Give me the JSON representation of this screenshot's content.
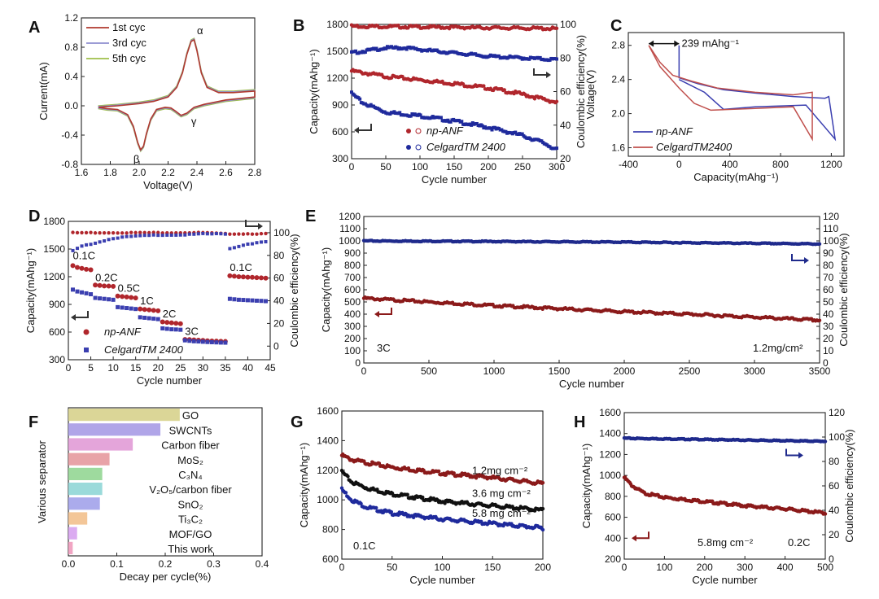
{
  "chart_data": [
    {
      "panel": "A",
      "type": "line",
      "xlabel": "Voltage(V)",
      "ylabel": "Current(mA)",
      "xlim": [
        1.6,
        2.8
      ],
      "ylim": [
        -0.8,
        1.2
      ],
      "xticks": [
        "1.6",
        "1.8",
        "2.0",
        "2.2",
        "2.4",
        "2.6",
        "2.8"
      ],
      "yticks": [
        "-0.8",
        "-0.4",
        "0.0",
        "0.4",
        "0.8",
        "1.2"
      ],
      "legend": [
        {
          "label": "1st cyc",
          "color": "#b03a2e"
        },
        {
          "label": "3rd cyc",
          "color": "#8e8ecf"
        },
        {
          "label": "5th cyc",
          "color": "#9fbf4a"
        }
      ],
      "annotations": [
        "α",
        "β",
        "γ"
      ],
      "cathodic_x": [
        2.8,
        2.6,
        2.45,
        2.38,
        2.33,
        2.29,
        2.25,
        2.22,
        2.18,
        2.12,
        2.08,
        2.05,
        2.03,
        2.01,
        1.99,
        1.96,
        1.92,
        1.85,
        1.78,
        1.72
      ],
      "cathodic_y": [
        0.12,
        0.08,
        0.02,
        -0.02,
        -0.1,
        -0.13,
        -0.07,
        -0.03,
        -0.02,
        -0.05,
        -0.18,
        -0.38,
        -0.55,
        -0.6,
        -0.5,
        -0.28,
        -0.12,
        -0.05,
        -0.04,
        -0.02
      ],
      "anodic_x": [
        1.72,
        1.85,
        2.0,
        2.1,
        2.2,
        2.26,
        2.3,
        2.33,
        2.36,
        2.38,
        2.4,
        2.43,
        2.47,
        2.55,
        2.65,
        2.8
      ],
      "anodic_y": [
        -0.02,
        0.0,
        0.03,
        0.06,
        0.12,
        0.25,
        0.45,
        0.7,
        0.88,
        0.9,
        0.75,
        0.45,
        0.25,
        0.18,
        0.18,
        0.2
      ]
    },
    {
      "panel": "B",
      "type": "scatter",
      "xlabel": "Cycle number",
      "ylabel": "Capacity(mAhg⁻¹)",
      "y2label": "Coulombic efficiency(%)",
      "xlim": [
        0,
        300
      ],
      "ylim": [
        300,
        1800
      ],
      "y2lim": [
        20,
        100
      ],
      "xticks": [
        "0",
        "50",
        "100",
        "150",
        "200",
        "250",
        "300"
      ],
      "yticks": [
        "300",
        "600",
        "900",
        "1200",
        "1500",
        "1800"
      ],
      "y2ticks": [
        "20",
        "40",
        "60",
        "80",
        "100"
      ],
      "legend": [
        {
          "label": "np-ANF",
          "color": "#b0262c"
        },
        {
          "label": "CelgardTM 2400",
          "color": "#1f2a9c"
        }
      ],
      "series": [
        {
          "name": "np-ANF capacity",
          "axis": "y",
          "color": "#b0262c",
          "x": [
            0,
            50,
            100,
            150,
            200,
            250,
            300
          ],
          "y": [
            1280,
            1220,
            1180,
            1140,
            1090,
            1020,
            930
          ]
        },
        {
          "name": "Celgard capacity",
          "axis": "y",
          "color": "#1f2a9c",
          "x": [
            0,
            15,
            50,
            100,
            150,
            200,
            250,
            280,
            300
          ],
          "y": [
            1030,
            930,
            820,
            780,
            720,
            650,
            560,
            480,
            400
          ]
        },
        {
          "name": "np-ANF CE",
          "axis": "y2",
          "color": "#b0262c",
          "x": [
            0,
            100,
            200,
            300
          ],
          "y": [
            99,
            98.5,
            98,
            97.5
          ]
        },
        {
          "name": "Celgard CE",
          "axis": "y2",
          "color": "#1f2a9c",
          "x": [
            0,
            50,
            80,
            100,
            150,
            200,
            250,
            300
          ],
          "y": [
            83,
            86,
            86,
            85,
            83,
            81,
            80,
            79
          ]
        }
      ]
    },
    {
      "panel": "C",
      "type": "line",
      "xlabel": "Capacity(mAhg⁻¹)",
      "ylabel": "Voltage(V)",
      "xlim": [
        -400,
        1300
      ],
      "ylim": [
        1.5,
        2.95
      ],
      "xticks": [
        "-400",
        "0",
        "400",
        "800",
        "1200"
      ],
      "yticks": [
        "1.6",
        "2.0",
        "2.4",
        "2.8"
      ],
      "annotation": "239 mAhg⁻¹",
      "legend": [
        {
          "label": "np-ANF",
          "color": "#3b3fb0"
        },
        {
          "label": "CelgardTM2400",
          "color": "#c0504d"
        }
      ],
      "series": [
        {
          "name": "np-ANF",
          "color": "#3b3fb0",
          "x": [
            0,
            0,
            150,
            350,
            600,
            900,
            1150,
            1180,
            1230,
            1230,
            1000,
            600,
            350,
            200,
            0
          ],
          "y": [
            2.8,
            2.42,
            2.35,
            2.28,
            2.24,
            2.2,
            2.18,
            2.2,
            1.7,
            1.7,
            2.1,
            2.08,
            2.05,
            2.25,
            2.4
          ]
        },
        {
          "name": "Celgard",
          "color": "#c0504d",
          "x": [
            -239,
            -150,
            -50,
            100,
            300,
            600,
            900,
            1050,
            1050,
            900,
            600,
            250,
            120,
            0,
            -150,
            -239
          ],
          "y": [
            2.8,
            2.6,
            2.45,
            2.38,
            2.3,
            2.25,
            2.22,
            2.25,
            1.7,
            2.08,
            2.06,
            2.04,
            2.12,
            2.3,
            2.55,
            2.8
          ]
        }
      ]
    },
    {
      "panel": "D",
      "type": "scatter",
      "xlabel": "Cycle number",
      "ylabel": "Capacity(mAhg⁻¹)",
      "y2label": "Coulombic efficiency(%)",
      "xlim": [
        0,
        45
      ],
      "ylim": [
        300,
        1800
      ],
      "y2lim": [
        -12,
        110
      ],
      "xticks": [
        "0",
        "5",
        "10",
        "15",
        "20",
        "25",
        "30",
        "35",
        "40",
        "45"
      ],
      "yticks": [
        "300",
        "600",
        "900",
        "1200",
        "1500",
        "1800"
      ],
      "y2ticks": [
        "0",
        "20",
        "40",
        "60",
        "80",
        "100"
      ],
      "rate_labels": [
        "0.1C",
        "0.2C",
        "0.5C",
        "1C",
        "2C",
        "3C",
        "0.1C"
      ],
      "legend": [
        {
          "label": "np-ANF",
          "color": "#b0262c"
        },
        {
          "label": "CelgardTM 2400",
          "color": "#3b3fb0"
        }
      ],
      "series": [
        {
          "name": "np-ANF capacity",
          "axis": "y",
          "color": "#b0262c",
          "x": [
            1,
            2,
            3,
            4,
            5,
            6,
            7,
            8,
            9,
            10,
            11,
            12,
            13,
            14,
            15,
            16,
            17,
            18,
            19,
            20,
            21,
            22,
            23,
            24,
            25,
            26,
            27,
            28,
            29,
            30,
            31,
            32,
            33,
            34,
            35,
            36,
            37,
            38,
            39,
            40,
            41,
            42,
            43,
            44
          ],
          "y": [
            1320,
            1300,
            1290,
            1280,
            1275,
            1110,
            1105,
            1100,
            1098,
            1095,
            990,
            985,
            980,
            975,
            970,
            850,
            845,
            840,
            835,
            830,
            710,
            705,
            700,
            695,
            690,
            520,
            518,
            515,
            512,
            510,
            505,
            503,
            502,
            500,
            498,
            1210,
            1205,
            1200,
            1198,
            1195,
            1193,
            1190,
            1188,
            1185
          ]
        },
        {
          "name": "Celgard capacity",
          "axis": "y",
          "color": "#3b3fb0",
          "x": [
            1,
            2,
            3,
            4,
            5,
            6,
            7,
            8,
            9,
            10,
            11,
            12,
            13,
            14,
            15,
            16,
            17,
            18,
            19,
            20,
            21,
            22,
            23,
            24,
            25,
            26,
            27,
            28,
            29,
            30,
            31,
            32,
            33,
            34,
            35,
            36,
            37,
            38,
            39,
            40,
            41,
            42,
            43,
            44
          ],
          "y": [
            1060,
            1040,
            1030,
            1020,
            1010,
            970,
            965,
            960,
            955,
            950,
            870,
            865,
            860,
            855,
            850,
            760,
            755,
            750,
            745,
            740,
            640,
            635,
            630,
            628,
            625,
            510,
            505,
            500,
            498,
            495,
            492,
            490,
            488,
            486,
            485,
            960,
            955,
            950,
            948,
            945,
            943,
            940,
            938,
            935
          ]
        },
        {
          "name": "np-ANF CE",
          "axis": "y2",
          "color": "#b0262c",
          "x": [
            1,
            5,
            10,
            15,
            20,
            25,
            30,
            35,
            40,
            44
          ],
          "y": [
            100,
            100,
            100,
            100,
            100,
            100,
            100,
            99,
            99,
            99
          ]
        },
        {
          "name": "Celgard CE",
          "axis": "y2",
          "color": "#3b3fb0",
          "x": [
            1,
            2,
            3,
            4,
            5,
            6,
            8,
            10,
            12,
            15,
            20,
            25,
            30,
            35,
            36,
            38,
            40,
            44
          ],
          "y": [
            84,
            86,
            88,
            89,
            90,
            91,
            93,
            95,
            96,
            97,
            98,
            98,
            99,
            99,
            86,
            88,
            90,
            92
          ]
        }
      ]
    },
    {
      "panel": "E",
      "type": "scatter",
      "xlabel": "Cycle number",
      "ylabel": "Capacity(mAhg⁻¹)",
      "y2label": "Coulombic efficiency(%)",
      "xlim": [
        0,
        3500
      ],
      "ylim": [
        0,
        1200
      ],
      "y2lim": [
        0,
        120
      ],
      "xticks": [
        "0",
        "500",
        "1000",
        "1500",
        "2000",
        "2500",
        "3000",
        "3500"
      ],
      "yticks": [
        "0",
        "100",
        "200",
        "300",
        "400",
        "500",
        "600",
        "700",
        "800",
        "900",
        "1000",
        "1100",
        "1200"
      ],
      "y2ticks": [
        "0",
        "10",
        "20",
        "30",
        "40",
        "50",
        "60",
        "70",
        "80",
        "90",
        "100",
        "110",
        "120"
      ],
      "annotations": [
        "3C",
        "1.2mg/cm²"
      ],
      "series": [
        {
          "name": "Capacity",
          "axis": "y",
          "color": "#8b1a1a",
          "x": [
            0,
            500,
            1000,
            1500,
            2000,
            2500,
            3000,
            3500
          ],
          "y": [
            530,
            500,
            470,
            445,
            420,
            400,
            375,
            350
          ]
        },
        {
          "name": "Coulombic efficiency",
          "axis": "y2",
          "color": "#1f2a8c",
          "x": [
            0,
            1000,
            2000,
            3000,
            3500
          ],
          "y": [
            100,
            99.5,
            99,
            98,
            97.5
          ]
        }
      ]
    },
    {
      "panel": "F",
      "type": "bar",
      "orientation": "horizontal",
      "xlabel": "Decay per cycle(%)",
      "ylabel": "Various separator",
      "xlim": [
        0,
        0.4
      ],
      "xticks": [
        "0.0",
        "0.1",
        "0.2",
        "0.3",
        "0.4"
      ],
      "categories": [
        "GO",
        "SWCNTs",
        "Carbon fiber",
        "MoS₂",
        "C₃N₄",
        "V₂O₅/carbon fiber",
        "SnO₂",
        "Ti₃C₂",
        "MOF/GO",
        "This work"
      ],
      "values": [
        0.23,
        0.19,
        0.133,
        0.085,
        0.07,
        0.07,
        0.065,
        0.039,
        0.018,
        0.009
      ],
      "colors": [
        "#d7d28c",
        "#a79be6",
        "#e19bd6",
        "#e6999e",
        "#93d693",
        "#8fd6d6",
        "#a2a2ea",
        "#f2c08d",
        "#d7a2ef",
        "#ef9bbd"
      ]
    },
    {
      "panel": "G",
      "type": "scatter",
      "xlabel": "Cycle number",
      "ylabel": "Capacity(mAhg⁻¹)",
      "xlim": [
        0,
        200
      ],
      "ylim": [
        600,
        1600
      ],
      "xticks": [
        "0",
        "50",
        "100",
        "150",
        "200"
      ],
      "yticks": [
        "600",
        "800",
        "1000",
        "1200",
        "1400",
        "1600"
      ],
      "annotations": [
        "0.1C"
      ],
      "series": [
        {
          "name": "1.2mg cm⁻²",
          "color": "#8b1a1a",
          "x": [
            0,
            10,
            25,
            50,
            100,
            150,
            200
          ],
          "y": [
            1300,
            1270,
            1250,
            1220,
            1180,
            1150,
            1110
          ]
        },
        {
          "name": "3.6 mg cm⁻²",
          "color": "#111111",
          "x": [
            0,
            10,
            25,
            50,
            100,
            150,
            200
          ],
          "y": [
            1190,
            1120,
            1080,
            1040,
            990,
            960,
            930
          ]
        },
        {
          "name": "5.8 mg cm⁻²",
          "color": "#1f2a9c",
          "x": [
            0,
            10,
            25,
            50,
            100,
            150,
            200
          ],
          "y": [
            1070,
            1000,
            950,
            910,
            870,
            840,
            810
          ]
        }
      ]
    },
    {
      "panel": "H",
      "type": "scatter",
      "xlabel": "Cycle number",
      "ylabel": "Capacity(mAhg⁻¹)",
      "y2label": "Coulombic efficiency(%)",
      "xlim": [
        0,
        500
      ],
      "ylim": [
        200,
        1600
      ],
      "y2lim": [
        0,
        120
      ],
      "xticks": [
        "0",
        "100",
        "200",
        "300",
        "400",
        "500"
      ],
      "yticks": [
        "200",
        "400",
        "600",
        "800",
        "1000",
        "1200",
        "1400",
        "1600"
      ],
      "y2ticks": [
        "0",
        "20",
        "40",
        "60",
        "80",
        "100",
        "120"
      ],
      "annotations": [
        "5.8mg cm⁻²",
        "0.2C"
      ],
      "series": [
        {
          "name": "Capacity",
          "axis": "y",
          "color": "#8b1a1a",
          "x": [
            0,
            5,
            20,
            50,
            100,
            150,
            200,
            300,
            400,
            500
          ],
          "y": [
            980,
            960,
            900,
            830,
            790,
            770,
            750,
            710,
            680,
            640
          ]
        },
        {
          "name": "Coulombic efficiency",
          "axis": "y2",
          "color": "#1f2a8c",
          "x": [
            0,
            100,
            200,
            300,
            400,
            500
          ],
          "y": [
            99,
            98.5,
            98,
            97.5,
            97,
            96.5
          ]
        }
      ]
    }
  ]
}
